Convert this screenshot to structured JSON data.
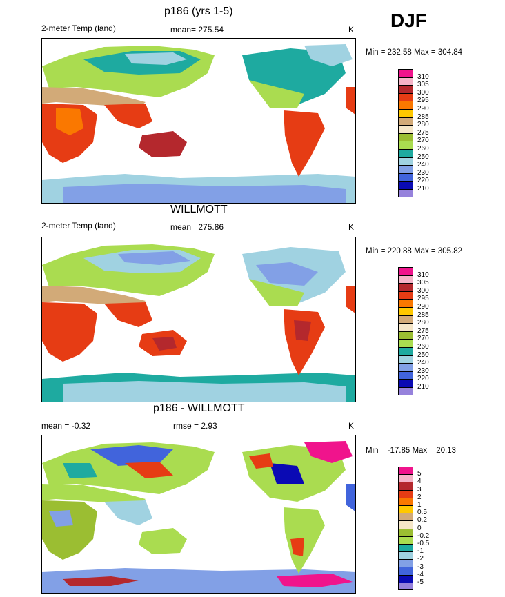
{
  "season": "DJF",
  "panels": [
    {
      "title": "p186 (yrs 1-5)",
      "left_label": "2-meter Temp (land)",
      "center_label": "mean= 275.54",
      "units": "K",
      "minmax": "Min = 232.58 Max = 304.84"
    },
    {
      "title": "WILLMOTT",
      "left_label": "2-meter Temp (land)",
      "center_label": "mean= 275.86",
      "units": "K",
      "minmax": "Min = 220.88 Max = 305.82"
    },
    {
      "title": "p186 - WILLMOTT",
      "left_label": "mean =  -0.32",
      "center_label": "rmse =   2.93",
      "units": "K",
      "minmax": "Min = -17.85 Max =  20.13"
    }
  ],
  "colorbars": {
    "abs": {
      "labels": [
        "310",
        "305",
        "300",
        "295",
        "290",
        "285",
        "280",
        "275",
        "270",
        "260",
        "250",
        "240",
        "230",
        "220",
        "210"
      ],
      "colors": [
        "#f0148c",
        "#f5b4c8",
        "#b4282d",
        "#e63c14",
        "#fa7800",
        "#ffc800",
        "#d2aa78",
        "#f5e6c8",
        "#9bbe32",
        "#aadc50",
        "#1eaaa0",
        "#a0d2e1",
        "#82a0e6",
        "#4164dc",
        "#0a0ab4",
        "#9682dc"
      ]
    },
    "diff": {
      "labels": [
        "5",
        "4",
        "3",
        "2",
        "1",
        "0.5",
        "0.2",
        "0",
        "-0.2",
        "-0.5",
        "-1",
        "-2",
        "-3",
        "-4",
        "-5"
      ],
      "colors": [
        "#f0148c",
        "#f5b4c8",
        "#b4282d",
        "#e63c14",
        "#fa7800",
        "#ffc800",
        "#d2aa78",
        "#f5e6c8",
        "#9bbe32",
        "#aadc50",
        "#1eaaa0",
        "#a0d2e1",
        "#82a0e6",
        "#4164dc",
        "#0a0ab4",
        "#9682dc"
      ]
    }
  }
}
